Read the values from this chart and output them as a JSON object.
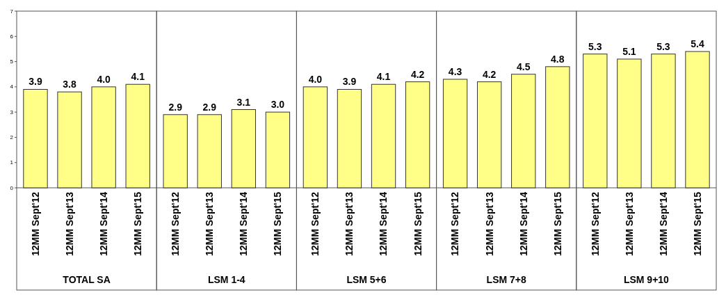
{
  "chart_data": [
    {
      "type": "bar",
      "xlabel": "TOTAL SA",
      "categories": [
        "12MM Sept'12",
        "12MM Sept'13",
        "12MM Sept'14",
        "12MM Sept'15"
      ],
      "values": [
        3.9,
        3.8,
        4.0,
        4.1
      ],
      "value_labels": [
        "3.9",
        "3.8",
        "4.0",
        "4.1"
      ],
      "color": "#ffff88",
      "ylim": [
        0,
        7
      ],
      "yticks": [
        0,
        1,
        2,
        3,
        4,
        5,
        6,
        7
      ],
      "grid": false
    },
    {
      "type": "bar",
      "xlabel": "LSM 1-4",
      "categories": [
        "12MM Sept'12",
        "12MM Sept'13",
        "12MM Sept'14",
        "12MM Sept'15"
      ],
      "values": [
        2.9,
        2.9,
        3.1,
        3.0
      ],
      "value_labels": [
        "2.9",
        "2.9",
        "3.1",
        "3.0"
      ],
      "color": "#ffff88",
      "ylim": [
        0,
        7
      ],
      "grid": false,
      "tick_labels": "x"
    },
    {
      "type": "bar",
      "xlabel": "LSM 5+6",
      "categories": [
        "12MM Sept'12",
        "12MM Sept'13",
        "12MM Sept'14",
        "12MM Sept'15"
      ],
      "values": [
        4.0,
        3.9,
        4.1,
        4.2
      ],
      "value_labels": [
        "4.0",
        "3.9",
        "4.1",
        "4.2"
      ],
      "color": "#ffff88",
      "ylim": [
        0,
        7
      ],
      "grid": false,
      "tick_labels": "x"
    },
    {
      "type": "bar",
      "xlabel": "LSM 7+8",
      "categories": [
        "12MM Sept'12",
        "12MM Sept'13",
        "12MM Sept'14",
        "12MM Sept'15"
      ],
      "values": [
        4.3,
        4.2,
        4.5,
        4.8
      ],
      "value_labels": [
        "4.3",
        "4.2",
        "4.5",
        "4.8"
      ],
      "color": "#ffff88",
      "ylim": [
        0,
        7
      ],
      "grid": false,
      "tick_labels": "x"
    },
    {
      "type": "bar",
      "xlabel": "LSM 9+10",
      "categories": [
        "12MM Sept'12",
        "12MM Sept'13",
        "12MM Sept'14",
        "12MM Sept'15"
      ],
      "values": [
        5.3,
        5.1,
        5.3,
        5.4
      ],
      "value_labels": [
        "5.3",
        "5.1",
        "5.3",
        "5.4"
      ],
      "color": "#ffff88",
      "ylim": [
        0,
        7
      ],
      "grid": false,
      "tick_labels": "x"
    }
  ]
}
